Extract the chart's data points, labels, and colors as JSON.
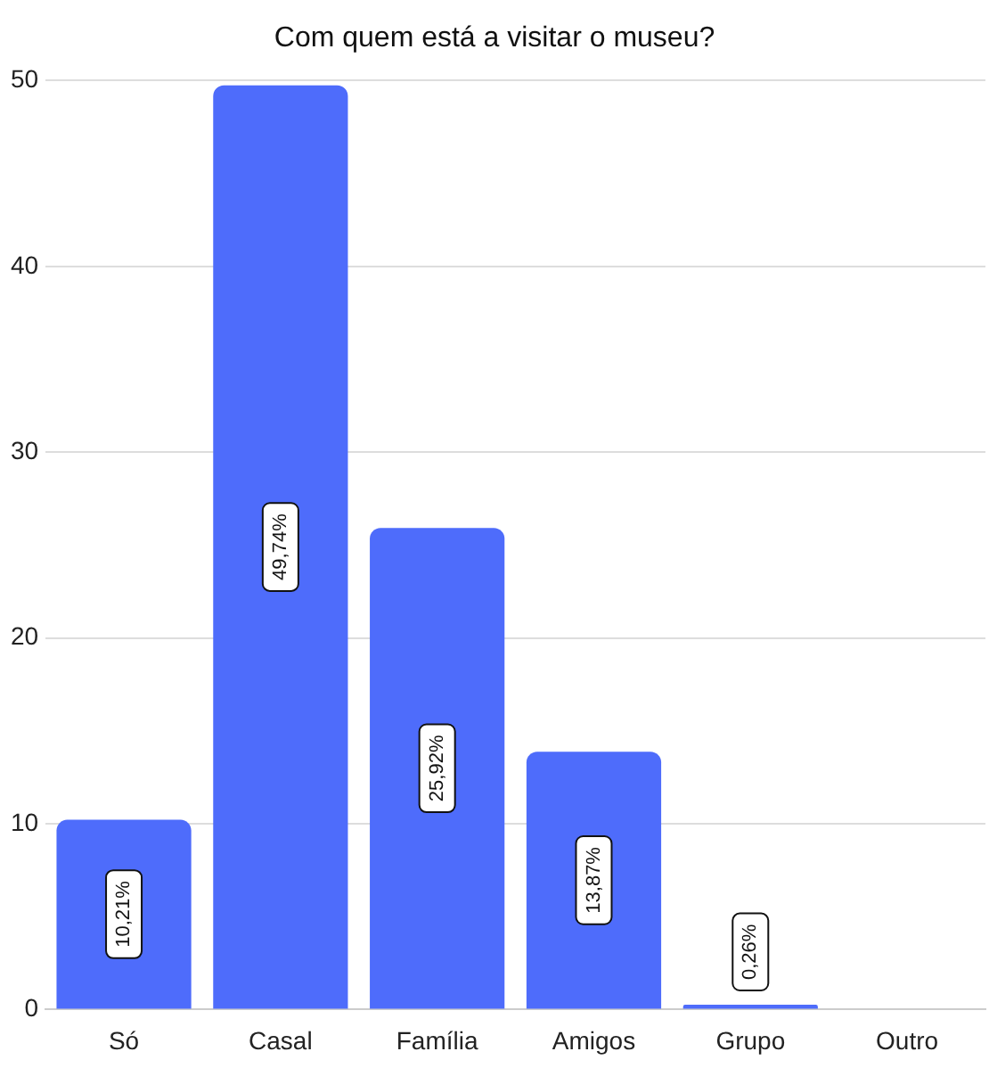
{
  "chart_data": {
    "type": "bar",
    "title": "Com quem está a visitar o museu?",
    "categories": [
      "Só",
      "Casal",
      "Família",
      "Amigos",
      "Grupo",
      "Outro"
    ],
    "values": [
      10.21,
      49.74,
      25.92,
      13.87,
      0.26,
      0
    ],
    "value_labels": [
      "10,21%",
      "49,74%",
      "25,92%",
      "13,87%",
      "0,26%",
      null
    ],
    "color": "#4e6cfb",
    "ylim": [
      0,
      50
    ],
    "yticks": [
      0,
      10,
      20,
      30,
      40,
      50
    ],
    "grid": "y"
  }
}
